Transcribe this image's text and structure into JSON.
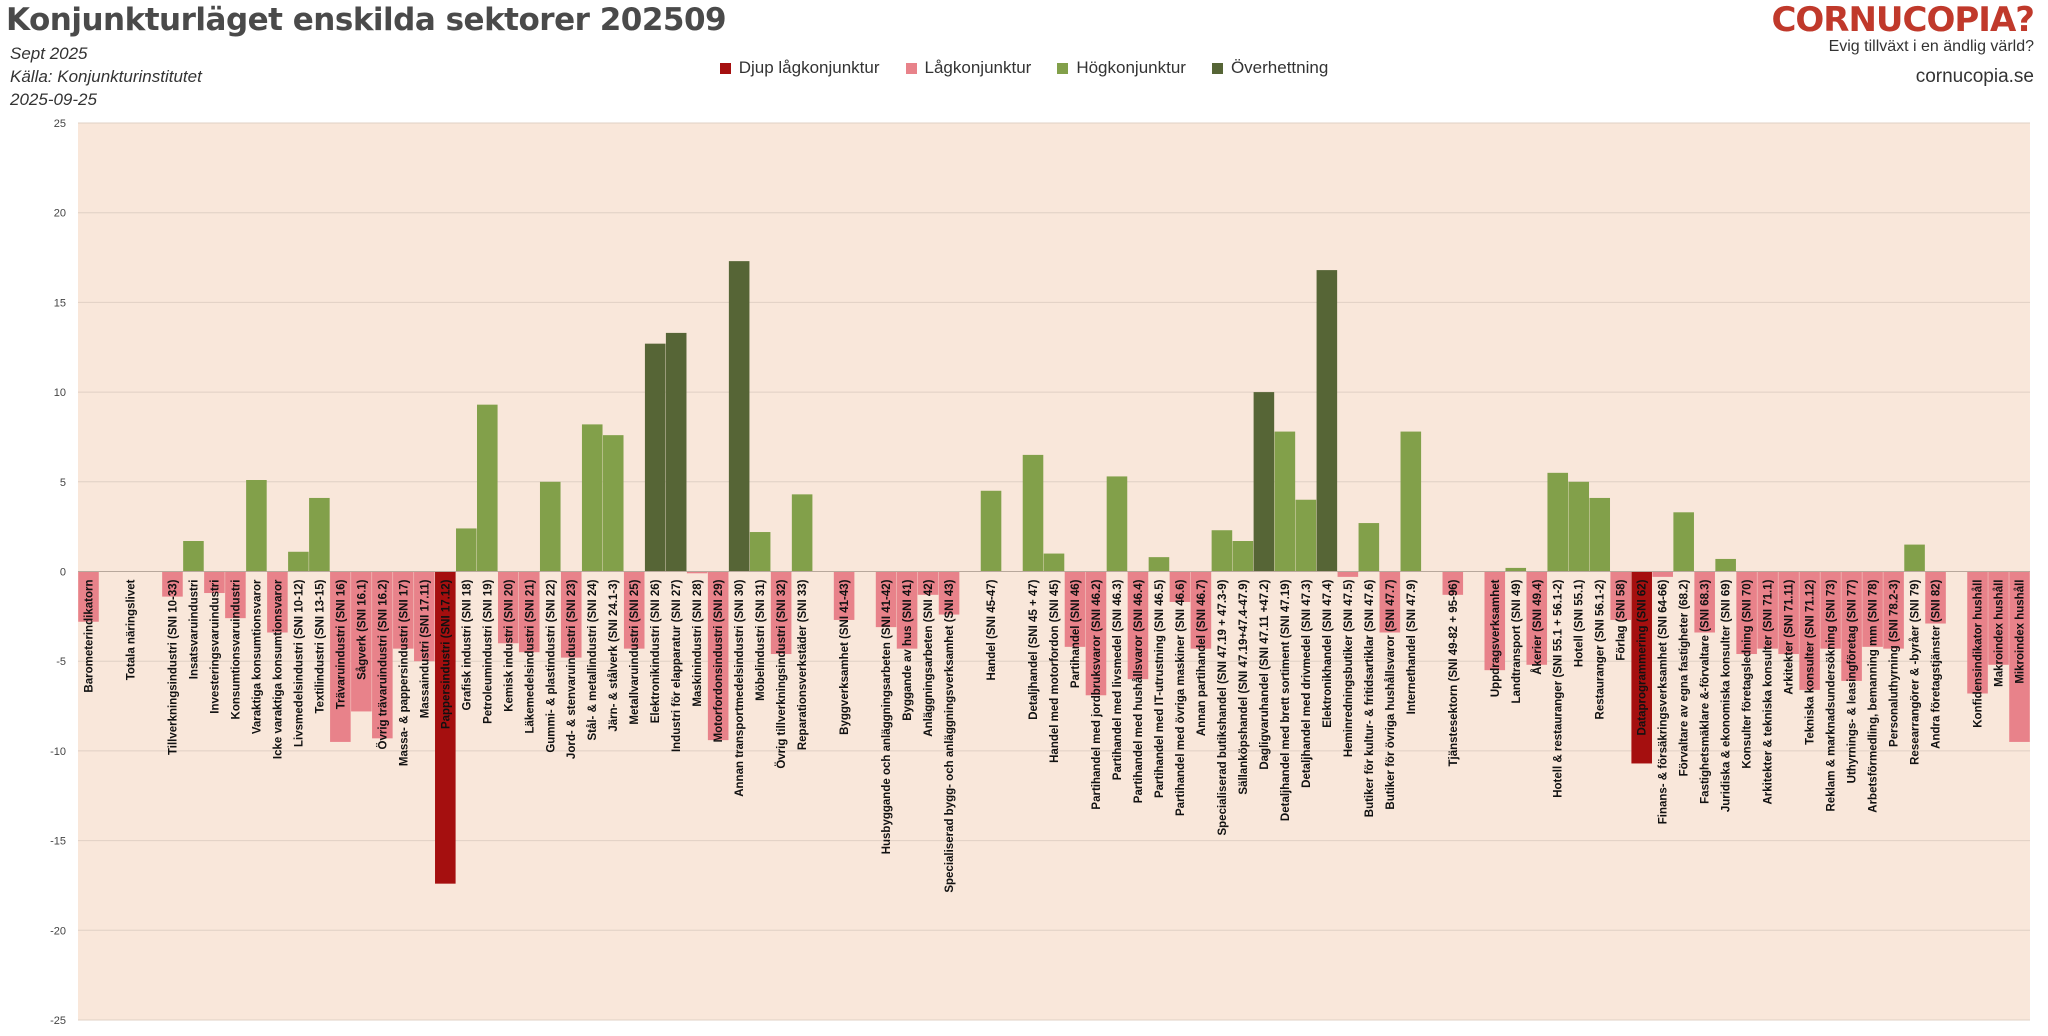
{
  "header": {
    "title": "Konjunkturläget enskilda sektorer 202509",
    "date": "Sept 2025",
    "source": "Källa: Konjunkturinstitutet",
    "published": "2025-09-25"
  },
  "brand": {
    "logo": "CORNUCOPIA?",
    "slogan": "Evig tillväxt i en ändlig värld?",
    "url": "cornucopia.se"
  },
  "legend": [
    {
      "label": "Djup lågkonjunktur",
      "color": "#a50f0f"
    },
    {
      "label": "Lågkonjunktur",
      "color": "#e8828a"
    },
    {
      "label": "Högkonjunktur",
      "color": "#82a04a"
    },
    {
      "label": "Överhettning",
      "color": "#566536"
    }
  ],
  "chart_data": {
    "type": "bar",
    "ylim": [
      -25,
      25
    ],
    "yticks": [
      -25,
      -20,
      -15,
      -10,
      -5,
      0,
      5,
      10,
      15,
      20,
      25
    ],
    "grid": true,
    "plot_background": "#f9e7da",
    "categories": [
      "Barometerindikatorn",
      "",
      "Totala näringslivet",
      "",
      "Tillverkningsindustri (SNI 10-33)",
      "Insatsvaruindustri",
      "Investeringsvaruindustri",
      "Konsumtionsvaruindustri",
      "Varaktiga konsumtionsvaror",
      "Icke varaktiga konsumtionsvaror",
      "Livsmedelsindustri (SNI 10-12)",
      "Textilindustri (SNI 13-15)",
      "Trävaruindustri (SNI 16)",
      "Sågverk (SNI 16.1)",
      "Övrig trävaruindustri (SNI 16.2)",
      "Massa- & pappersindustri (SNI 17)",
      "Massaindustri (SNI 17.11)",
      "Pappersindustri (SNI 17.12)",
      "Grafisk industri (SNI 18)",
      "Petroleumindustri (SNI 19)",
      "Kemisk industri (SNI 20)",
      "Läkemedelsindustri (SNI 21)",
      "Gummi- & plastindustri (SNI 22)",
      "Jord- & stenvaruindustri (SNI 23)",
      "Stål- & metallindustri (SNI 24)",
      "Järn- & stålverk (SNI 24.1-3)",
      "Metallvaruindustri (SNI 25)",
      "Elektronikindustri (SNI 26)",
      "Industri för elapparatur (SNI 27)",
      "Maskinindustri (SNI 28)",
      "Motorfordonsindustri (SNI 29)",
      "Annan transportmedelsindustri (SNI 30)",
      "Möbelindustri (SNI 31)",
      "Övrig tillverkningsindustri (SNI 32)",
      "Reparationsverkstäder (SNI 33)",
      "",
      "Byggverksamhet (SNI 41-43)",
      "",
      "Husbyggande och anläggningsarbeten (SNI 41-42)",
      "Byggande av hus (SNI 41)",
      "Anläggningsarbeten (SNI 42)",
      "Specialiserad bygg- och anläggningsverksamhet (SNI 43)",
      "",
      "Handel (SNI 45-47)",
      "",
      "Detaljhandel (SNI 45 + 47)",
      "Handel med motorfordon (SNI 45)",
      "Partihandel (SNI 46)",
      "Partihandel med jordbruksvaror (SNI 46.2)",
      "Partihandel med livsmedel (SNI 46.3)",
      "Partihandel med hushållsvaror (SNI 46.4)",
      "Partihandel med IT-utrustning (SNI 46.5)",
      "Partihandel med övriga maskiner (SNI 46.6)",
      "Annan partihandel (SNI 46.7)",
      "Specialiserad butikshandel (SNI 47.19 + 47.3-9)",
      "Sällanköpshandel (SNI 47.19+47.4-47.9)",
      "Dagligvaruhandel (SNI 47.11 +47.2)",
      "Detaljhandel med brett sortiment (SNI 47.19)",
      "Detaljhandel med drivmedel (SNI 47.3)",
      "Elektronikhandel (SNI 47.4)",
      "Heminredningsbutiker (SNI 47.5)",
      "Butiker för kultur- & fritidsartiklar (SNI 47.6)",
      "Butiker för övriga hushållsvaror (SNI 47.7)",
      "Internethandel (SNI 47.9)",
      "",
      "Tjänstesektorn (SNI 49-82 + 95-96)",
      "",
      "Uppdragsverksamhet",
      "Landtransport (SNI 49)",
      "Åkerier (SNI 49.4)",
      "Hotell & restauranger (SNI 55.1 + 56.1-2)",
      "Hotell (SNI 55.1)",
      "Restauranger (SNI 56.1-2)",
      "Förlag (SNI 58)",
      "Dataprogrammering (SNI 62)",
      "Finans- & försäkringsverksamhet (SNI 64-66)",
      "Förvaltare av egna fastigheter (68.2)",
      "Fastighetsmäklare &-förvaltare (SNI 68.3)",
      "Juridiska & ekonomiska konsulter (SNI 69)",
      "Konsulter företagsledning (SNI 70)",
      "Arkitekter & tekniska konsulter (SNI 71.1)",
      "Arkitekter (SNI 71.11)",
      "Tekniska konsulter (SNI 71.12)",
      "Reklam & marknadsundersökning (SNI 73)",
      "Uthyrnings- & leasingföretag (SNI 77)",
      "Arbetsförmedling, bemanning mm (SNI 78)",
      "Personaluthyrning (SNI 78.2-3)",
      "Researrangörer & -byråer (SNI 79)",
      "Andra företagstjänster (SNI 82)",
      "",
      "Konfidensindikator hushåll",
      "Makroindex hushåll",
      "Mikroindex hushåll"
    ],
    "values": [
      -2.8,
      null,
      0,
      null,
      -1.4,
      1.7,
      -1.2,
      -2.6,
      5.1,
      -3.4,
      1.1,
      4.1,
      -9.5,
      -7.8,
      -9.3,
      -4.3,
      -5.0,
      -17.4,
      2.4,
      9.3,
      -4.0,
      -4.5,
      5.0,
      -4.8,
      8.2,
      7.6,
      -4.3,
      12.7,
      13.3,
      -0.1,
      -9.4,
      17.3,
      2.2,
      -4.6,
      4.3,
      null,
      -2.7,
      null,
      -3.1,
      -4.3,
      -1.3,
      -2.4,
      null,
      4.5,
      null,
      6.5,
      1.0,
      -4.2,
      -6.9,
      5.3,
      -6.0,
      0.8,
      -1.7,
      -4.3,
      2.3,
      1.7,
      10.0,
      7.8,
      4.0,
      16.8,
      -0.3,
      2.7,
      -3.4,
      7.8,
      null,
      -1.3,
      null,
      -5.5,
      0.2,
      -5.2,
      5.5,
      5.0,
      4.1,
      -2.7,
      -10.7,
      -0.3,
      3.3,
      -3.4,
      0.7,
      -4.6,
      -4.3,
      -4.6,
      -6.6,
      -4.3,
      -6.1,
      -4.2,
      -4.3,
      1.5,
      -2.9,
      null,
      -6.8,
      -5.2,
      -9.5
    ],
    "levels": [
      2,
      0,
      0,
      0,
      2,
      3,
      2,
      2,
      3,
      2,
      3,
      3,
      2,
      2,
      2,
      2,
      2,
      1,
      3,
      3,
      2,
      2,
      3,
      2,
      3,
      3,
      2,
      4,
      4,
      2,
      2,
      4,
      3,
      2,
      3,
      0,
      2,
      0,
      2,
      2,
      2,
      2,
      0,
      3,
      0,
      3,
      3,
      2,
      2,
      3,
      2,
      3,
      2,
      2,
      3,
      3,
      4,
      3,
      3,
      4,
      2,
      3,
      2,
      3,
      0,
      2,
      0,
      2,
      3,
      2,
      3,
      3,
      3,
      2,
      1,
      2,
      3,
      2,
      3,
      2,
      2,
      2,
      2,
      2,
      2,
      2,
      2,
      3,
      2,
      0,
      2,
      2,
      2
    ]
  }
}
